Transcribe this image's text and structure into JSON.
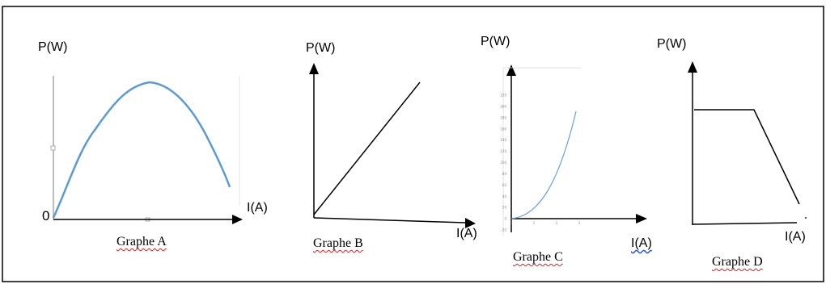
{
  "graphs": [
    {
      "id": "A",
      "ylabel": "P(W)",
      "xlabel": "I(A)",
      "origin_label": "0",
      "caption": "Graphe A",
      "shape": "parabola-cap"
    },
    {
      "id": "B",
      "ylabel": "P(W)",
      "xlabel": "I(A)",
      "caption": "Graphe B",
      "shape": "increasing-line"
    },
    {
      "id": "C",
      "ylabel": "P(W)",
      "xlabel": "I(A)",
      "caption": "Graphe C",
      "shape": "parabola-rising",
      "tick_labels_y": [
        "220",
        "200",
        "180",
        "160",
        "140",
        "120",
        "100",
        "80",
        "60",
        "40",
        "20",
        "0",
        "-20"
      ],
      "tick_labels_x": [
        "0",
        "1",
        "2",
        "3"
      ]
    },
    {
      "id": "D",
      "ylabel": "P(W)",
      "xlabel": "I(A)",
      "caption": "Graphe D",
      "shape": "plateau-then-decrease"
    }
  ],
  "colors": {
    "curve": "#5b9bd5",
    "line": "#000000",
    "frame": "#000000",
    "spellcheck": "#d62020"
  }
}
